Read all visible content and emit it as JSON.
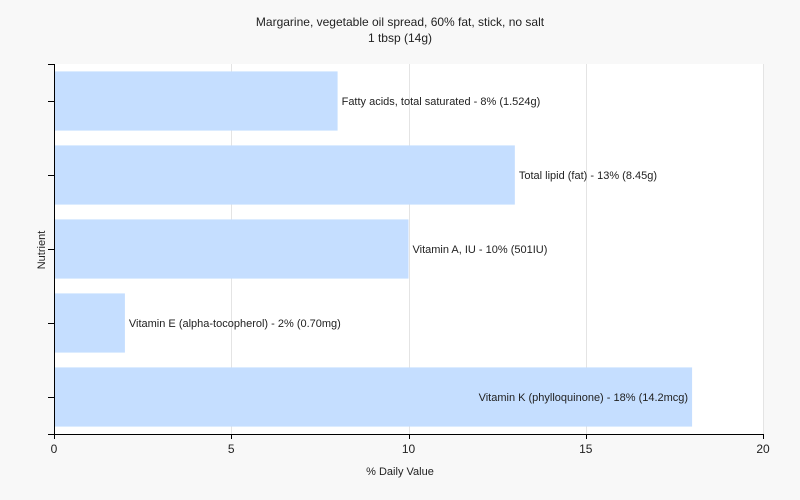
{
  "chart_data": {
    "type": "bar",
    "orientation": "horizontal",
    "title": "Margarine, vegetable oil spread, 60% fat, stick, no salt",
    "subtitle": "1 tbsp (14g)",
    "xlabel": "% Daily Value",
    "ylabel": "Nutrient",
    "xlim": [
      0,
      20
    ],
    "xticks": [
      0,
      5,
      10,
      15,
      20
    ],
    "grid": true,
    "bar_color": "#c5deff",
    "categories": [
      "Fatty acids, total saturated",
      "Total lipid (fat)",
      "Vitamin A, IU",
      "Vitamin E (alpha-tocopherol)",
      "Vitamin K (phylloquinone)"
    ],
    "values": [
      8,
      13,
      10,
      2,
      18
    ],
    "labels": [
      "Fatty acids, total saturated - 8% (1.524g)",
      "Total lipid (fat) - 13% (8.45g)",
      "Vitamin A, IU - 10% (501IU)",
      "Vitamin E (alpha-tocopherol) - 2% (0.70mg)",
      "Vitamin K (phylloquinone) - 18% (14.2mcg)"
    ]
  }
}
